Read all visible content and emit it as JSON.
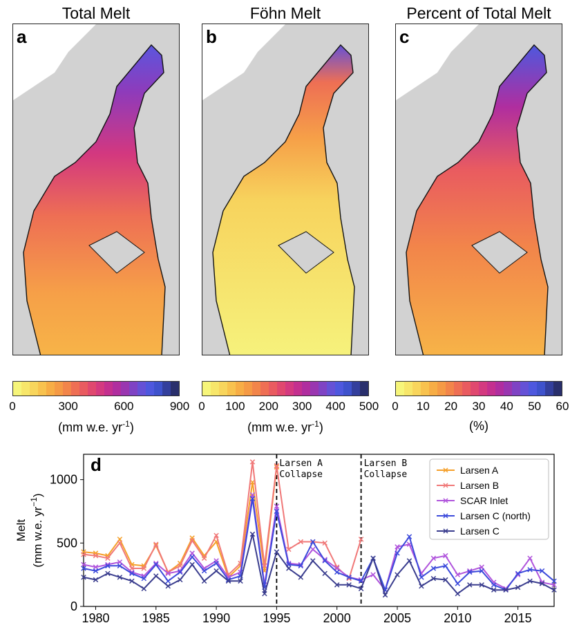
{
  "panels": [
    {
      "letter": "a",
      "title": "Total Melt",
      "ticks": [
        "0",
        "300",
        "600",
        "900"
      ],
      "unit": "(mm w.e. yr-1)"
    },
    {
      "letter": "b",
      "title": "Föhn Melt",
      "ticks": [
        "0",
        "100",
        "200",
        "300",
        "400",
        "500"
      ],
      "unit": "(mm w.e. yr-1)"
    },
    {
      "letter": "c",
      "title": "Percent of Total Melt",
      "ticks": [
        "0",
        "10",
        "20",
        "30",
        "40",
        "50",
        "60"
      ],
      "unit": "(%)"
    }
  ],
  "colormap": [
    "#f6f57a",
    "#f7e66a",
    "#f8d55c",
    "#f8c24e",
    "#f7ad45",
    "#f59a45",
    "#f2854a",
    "#ee6f54",
    "#e95b60",
    "#e0486f",
    "#d43a80",
    "#c4308f",
    "#b02e9f",
    "#9a36b0",
    "#7f43c4",
    "#6551d6",
    "#4e58de",
    "#3e52cc",
    "#333f9c",
    "#292f6c"
  ],
  "chart_data": {
    "type": "line",
    "panel_letter": "d",
    "xlim": [
      1979,
      2018
    ],
    "ylim": [
      0,
      1200
    ],
    "xticks": [
      1980,
      1985,
      1990,
      1995,
      2000,
      2005,
      2010,
      2015
    ],
    "yticks": [
      0,
      500,
      1000
    ],
    "ylabel": "Melt",
    "ylabel_unit": "(mm w.e. yr",
    "ylabel_exp": "−1",
    "ylabel_close": ")",
    "legend_position": "top-right",
    "events": [
      {
        "x": 1995,
        "line1": "Larsen A",
        "line2": "Collapse"
      },
      {
        "x": 2002,
        "line1": "Larsen B",
        "line2": "Collapse"
      }
    ],
    "years": [
      1979,
      1980,
      1981,
      1982,
      1983,
      1984,
      1985,
      1986,
      1987,
      1988,
      1989,
      1990,
      1991,
      1992,
      1993,
      1994,
      1995,
      1996,
      1997,
      1998,
      1999,
      2000,
      2001,
      2002,
      2003,
      2004,
      2005,
      2006,
      2007,
      2008,
      2009,
      2010,
      2011,
      2012,
      2013,
      2014,
      2015,
      2016,
      2017,
      2018
    ],
    "series": [
      {
        "name": "Larsen A",
        "color": "#f5a02a",
        "values": [
          430,
          420,
          400,
          530,
          330,
          320,
          480,
          270,
          340,
          540,
          400,
          510,
          230,
          320,
          980,
          280,
          1100,
          null,
          null,
          null,
          null,
          null,
          null,
          null,
          null,
          null,
          null,
          null,
          null,
          null,
          null,
          null,
          null,
          null,
          null,
          null,
          null,
          null,
          null,
          null
        ]
      },
      {
        "name": "Larsen B",
        "color": "#f07878",
        "values": [
          410,
          400,
          380,
          500,
          300,
          300,
          490,
          270,
          320,
          520,
          380,
          560,
          250,
          340,
          1140,
          320,
          1110,
          450,
          510,
          510,
          500,
          310,
          220,
          530,
          null,
          null,
          null,
          null,
          null,
          null,
          null,
          null,
          null,
          null,
          null,
          null,
          null,
          null,
          null,
          null
        ]
      },
      {
        "name": "SCAR Inlet",
        "color": "#b054dc",
        "values": [
          330,
          310,
          330,
          350,
          270,
          240,
          340,
          260,
          280,
          420,
          300,
          360,
          230,
          270,
          880,
          170,
          790,
          340,
          330,
          450,
          370,
          300,
          230,
          210,
          250,
          130,
          470,
          490,
          260,
          380,
          400,
          250,
          280,
          310,
          190,
          140,
          250,
          380,
          190,
          170
        ]
      },
      {
        "name": "Larsen C (north)",
        "color": "#3c4adb",
        "values": [
          300,
          280,
          320,
          320,
          260,
          220,
          330,
          200,
          270,
          390,
          280,
          340,
          210,
          240,
          850,
          150,
          750,
          330,
          320,
          510,
          360,
          270,
          230,
          200,
          380,
          130,
          420,
          550,
          230,
          300,
          320,
          180,
          270,
          280,
          170,
          130,
          260,
          290,
          280,
          200
        ]
      },
      {
        "name": "Larsen C",
        "color": "#3a3d8e",
        "values": [
          230,
          210,
          260,
          230,
          200,
          140,
          240,
          160,
          210,
          330,
          200,
          280,
          200,
          200,
          570,
          100,
          430,
          300,
          230,
          360,
          260,
          170,
          170,
          140,
          380,
          90,
          250,
          360,
          160,
          220,
          210,
          100,
          170,
          170,
          130,
          130,
          150,
          200,
          180,
          130
        ]
      }
    ]
  }
}
